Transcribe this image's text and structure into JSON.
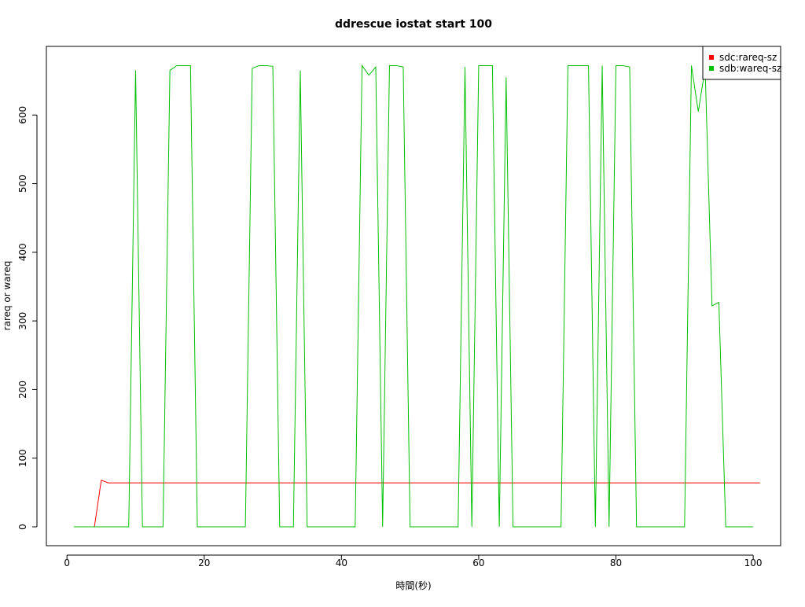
{
  "chart_data": {
    "type": "line",
    "title": "ddrescue iostat start 100",
    "x_label": "時間(秒)",
    "y_label": "rareq or wareq",
    "x": [
      1,
      2,
      3,
      4,
      5,
      6,
      7,
      8,
      9,
      10,
      11,
      12,
      13,
      14,
      15,
      16,
      17,
      18,
      19,
      20,
      21,
      22,
      23,
      24,
      25,
      26,
      27,
      28,
      29,
      30,
      31,
      32,
      33,
      34,
      35,
      36,
      37,
      38,
      39,
      40,
      41,
      42,
      43,
      44,
      45,
      46,
      47,
      48,
      49,
      50,
      51,
      52,
      53,
      54,
      55,
      56,
      57,
      58,
      59,
      60,
      61,
      62,
      63,
      64,
      65,
      66,
      67,
      68,
      69,
      70,
      71,
      72,
      73,
      74,
      75,
      76,
      77,
      78,
      79,
      80,
      81,
      82,
      83,
      84,
      85,
      86,
      87,
      88,
      89,
      90,
      91,
      92,
      93,
      94,
      95,
      96,
      97,
      98,
      99,
      100,
      101
    ],
    "series": [
      {
        "name": "sdc:rareq-sz",
        "color": "#ff0000",
        "values": [
          null,
          0,
          0,
          0,
          68,
          64,
          64,
          64,
          64,
          64,
          64,
          64,
          64,
          64,
          64,
          64,
          64,
          64,
          64,
          64,
          64,
          64,
          64,
          64,
          64,
          64,
          64,
          64,
          64,
          64,
          64,
          64,
          64,
          64,
          64,
          64,
          64,
          64,
          64,
          64,
          64,
          64,
          64,
          64,
          64,
          64,
          64,
          64,
          64,
          64,
          64,
          64,
          64,
          64,
          64,
          64,
          64,
          64,
          64,
          64,
          64,
          64,
          64,
          64,
          64,
          64,
          64,
          64,
          64,
          64,
          64,
          64,
          64,
          64,
          64,
          64,
          64,
          64,
          64,
          64,
          64,
          64,
          64,
          64,
          64,
          64,
          64,
          64,
          64,
          64,
          64,
          64,
          64,
          64,
          64,
          64,
          64,
          64,
          64,
          64,
          64
        ]
      },
      {
        "name": "sdb:wareq-sz",
        "color": "#00c000",
        "values": [
          0,
          0,
          0,
          0,
          0,
          0,
          0,
          0,
          0,
          665,
          0,
          0,
          0,
          0,
          665,
          672,
          672,
          672,
          0,
          0,
          0,
          0,
          0,
          0,
          0,
          0,
          668,
          672,
          672,
          671,
          0,
          0,
          0,
          665,
          0,
          0,
          0,
          0,
          0,
          0,
          0,
          0,
          672,
          658,
          670,
          0,
          672,
          672,
          670,
          0,
          0,
          0,
          0,
          0,
          0,
          0,
          0,
          670,
          0,
          672,
          672,
          672,
          0,
          655,
          0,
          0,
          0,
          0,
          0,
          0,
          0,
          0,
          672,
          672,
          672,
          672,
          0,
          672,
          0,
          672,
          672,
          670,
          0,
          0,
          0,
          0,
          0,
          0,
          0,
          0,
          672,
          605,
          668,
          322,
          327,
          0,
          0,
          0,
          0,
          0,
          null
        ]
      }
    ],
    "xlim": [
      -3,
      104
    ],
    "ylim": [
      -27.5,
      700
    ],
    "xticks": [
      0,
      20,
      40,
      60,
      80,
      100
    ],
    "yticks": [
      0,
      100,
      200,
      300,
      400,
      500,
      600
    ],
    "legend": "top-right"
  }
}
